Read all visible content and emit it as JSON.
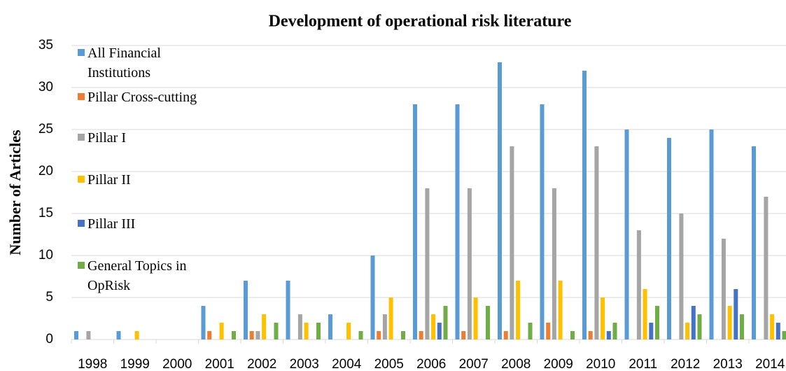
{
  "chart_data": {
    "type": "bar",
    "title": "Development of operational risk literature",
    "y_label": "Number of Articles",
    "categories": [
      "1998",
      "1999",
      "2000",
      "2001",
      "2002",
      "2003",
      "2004",
      "2005",
      "2006",
      "2007",
      "2008",
      "2009",
      "2010",
      "2011",
      "2012",
      "2013",
      "2014"
    ],
    "series": [
      {
        "name": "All Financial Institutions",
        "color": "#5b9bd5",
        "values": [
          1,
          1,
          0,
          4,
          7,
          7,
          3,
          10,
          28,
          28,
          33,
          28,
          32,
          25,
          24,
          25,
          23
        ]
      },
      {
        "name": "Pillar Cross-cutting",
        "color": "#ed7d31",
        "values": [
          0,
          0,
          0,
          1,
          1,
          0,
          0,
          1,
          1,
          1,
          1,
          2,
          1,
          0,
          0,
          0,
          0
        ]
      },
      {
        "name": "Pillar I",
        "color": "#a5a5a5",
        "values": [
          1,
          0,
          0,
          0,
          1,
          3,
          0,
          3,
          18,
          18,
          23,
          18,
          23,
          13,
          15,
          12,
          17
        ]
      },
      {
        "name": "Pillar II",
        "color": "#ffc000",
        "values": [
          0,
          1,
          0,
          2,
          3,
          2,
          2,
          5,
          3,
          5,
          7,
          7,
          5,
          6,
          2,
          4,
          3
        ]
      },
      {
        "name": "Pillar III",
        "color": "#4472c4",
        "values": [
          0,
          0,
          0,
          0,
          0,
          0,
          0,
          0,
          2,
          0,
          0,
          0,
          1,
          2,
          4,
          6,
          2
        ]
      },
      {
        "name": "General Topics in OpRisk",
        "color": "#70ad47",
        "values": [
          0,
          0,
          0,
          1,
          2,
          2,
          1,
          1,
          4,
          4,
          2,
          1,
          2,
          4,
          3,
          3,
          1
        ]
      }
    ],
    "ylim": [
      0,
      35
    ],
    "yticks": [
      0,
      5,
      10,
      15,
      20,
      25,
      30,
      35
    ],
    "grid": true,
    "legend": "left"
  }
}
